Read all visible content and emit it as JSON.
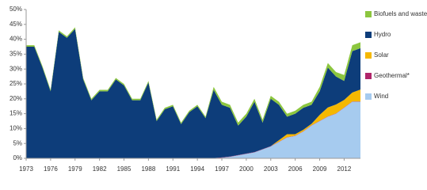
{
  "chart_data": {
    "type": "stacked_area",
    "x": [
      1973,
      1974,
      1975,
      1976,
      1977,
      1978,
      1979,
      1980,
      1981,
      1982,
      1983,
      1984,
      1985,
      1986,
      1987,
      1988,
      1989,
      1990,
      1991,
      1992,
      1993,
      1994,
      1995,
      1996,
      1997,
      1998,
      1999,
      2000,
      2001,
      2002,
      2003,
      2004,
      2005,
      2006,
      2007,
      2008,
      2009,
      2010,
      2011,
      2012,
      2013,
      2014
    ],
    "xlim": [
      1973,
      2014
    ],
    "xticks": [
      1973,
      1976,
      1979,
      1982,
      1985,
      1988,
      1991,
      1994,
      1997,
      2000,
      2003,
      2006,
      2009,
      2012
    ],
    "ylim": [
      0,
      50
    ],
    "yticks": [
      {
        "value": 0,
        "label": "0%"
      },
      {
        "value": 5,
        "label": "5%"
      },
      {
        "value": 10,
        "label": "10%"
      },
      {
        "value": 15,
        "label": "15%"
      },
      {
        "value": 20,
        "label": "20%"
      },
      {
        "value": 25,
        "label": "25%"
      },
      {
        "value": 30,
        "label": "30%"
      },
      {
        "value": 35,
        "label": "35%"
      },
      {
        "value": 40,
        "label": "40%"
      },
      {
        "value": 45,
        "label": "45%"
      },
      {
        "value": 50,
        "label": "50%"
      }
    ],
    "series": [
      {
        "name": "Biofuels and waste",
        "color": "#8cc63f",
        "values": [
          0.5,
          0.5,
          0.5,
          0.5,
          0.5,
          0.5,
          0.5,
          0.5,
          0.5,
          0.5,
          0.5,
          0.5,
          0.5,
          0.5,
          0.5,
          0.5,
          0.5,
          0.5,
          0.5,
          0.5,
          0.5,
          0.5,
          0.5,
          1,
          1,
          1,
          1,
          1,
          1,
          1,
          1,
          1,
          1,
          1,
          1,
          1,
          1.5,
          1.5,
          1.5,
          2,
          2,
          2
        ]
      },
      {
        "name": "Hydro",
        "color": "#0d3d7a",
        "values": [
          37.4,
          37.4,
          30.4,
          22.4,
          42.4,
          40.4,
          43.4,
          26.4,
          19.4,
          22.4,
          22.4,
          26.4,
          24.4,
          19.4,
          19.4,
          25.4,
          12.4,
          16.4,
          17.4,
          11.4,
          15.4,
          17.4,
          13.4,
          22.9,
          17.7,
          16.4,
          9.9,
          12.4,
          16.9,
          8.9,
          15.9,
          11.9,
          5.9,
          6.9,
          7.4,
          6.4,
          7.9,
          13.4,
          9.4,
          6.4,
          13.9,
          13.9
        ]
      },
      {
        "name": "Solar",
        "color": "#f5b800",
        "values": [
          0,
          0,
          0,
          0,
          0,
          0,
          0,
          0,
          0,
          0,
          0,
          0,
          0,
          0,
          0,
          0,
          0,
          0,
          0,
          0,
          0,
          0,
          0,
          0,
          0,
          0,
          0,
          0,
          0,
          0,
          0,
          0.5,
          1,
          0.5,
          0.5,
          0.5,
          2,
          3,
          3,
          2.5,
          3,
          4
        ]
      },
      {
        "name": "Geothermal*",
        "color": "#b0256a",
        "values": [
          0.1,
          0.1,
          0.1,
          0.1,
          0.1,
          0.1,
          0.1,
          0.1,
          0.1,
          0.1,
          0.1,
          0.1,
          0.1,
          0.1,
          0.1,
          0.1,
          0.1,
          0.1,
          0.1,
          0.1,
          0.1,
          0.1,
          0.1,
          0.1,
          0.1,
          0.1,
          0.1,
          0.1,
          0.1,
          0.1,
          0.1,
          0.1,
          0.1,
          0.1,
          0.1,
          0.1,
          0.1,
          0.1,
          0.1,
          0.1,
          0.1,
          0.1
        ]
      },
      {
        "name": "Wind",
        "color": "#a6cbef",
        "values": [
          0,
          0,
          0,
          0,
          0,
          0,
          0,
          0,
          0,
          0,
          0,
          0,
          0,
          0,
          0,
          0,
          0,
          0,
          0,
          0,
          0,
          0,
          0,
          0,
          0.2,
          0.5,
          1,
          1.5,
          2,
          3,
          4,
          5.5,
          7,
          7.5,
          9,
          11,
          12.5,
          14,
          15,
          17,
          19,
          19
        ]
      }
    ]
  }
}
